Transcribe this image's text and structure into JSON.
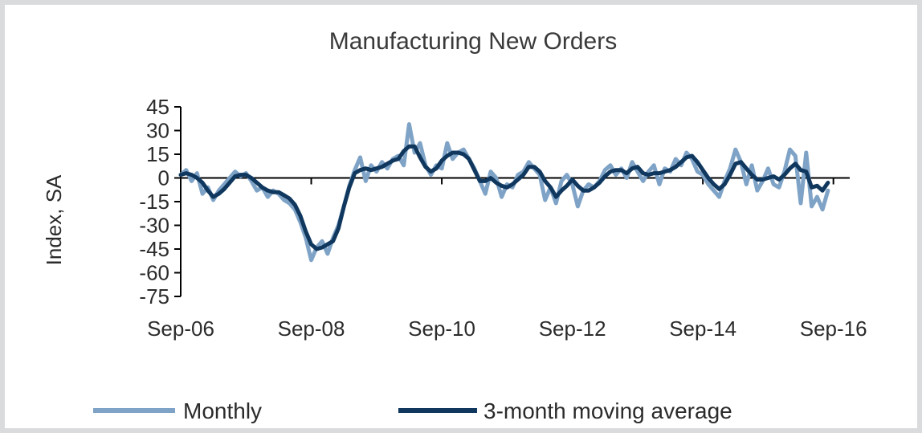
{
  "chart_data": {
    "type": "line",
    "title": "Manufacturing New Orders",
    "ylabel": "Index, SA",
    "xlabel": "",
    "ylim": [
      -75,
      45
    ],
    "yticks": [
      45,
      30,
      15,
      0,
      -15,
      -30,
      -45,
      -60,
      -75
    ],
    "xlim": [
      "2006-09",
      "2016-12"
    ],
    "xtick_labels": [
      "Sep-06",
      "Sep-08",
      "Sep-10",
      "Sep-12",
      "Sep-14",
      "Sep-16"
    ],
    "legend_position": "bottom",
    "series": [
      {
        "name": "Monthly",
        "color": "#7fa3c6",
        "points": [
          [
            "2006-09",
            2
          ],
          [
            "2006-10",
            5
          ],
          [
            "2006-11",
            -2
          ],
          [
            "2006-12",
            3
          ],
          [
            "2007-01",
            -10
          ],
          [
            "2007-02",
            -6
          ],
          [
            "2007-03",
            -14
          ],
          [
            "2007-04",
            -8
          ],
          [
            "2007-05",
            -4
          ],
          [
            "2007-06",
            0
          ],
          [
            "2007-07",
            4
          ],
          [
            "2007-08",
            1
          ],
          [
            "2007-09",
            3
          ],
          [
            "2007-10",
            -2
          ],
          [
            "2007-11",
            -8
          ],
          [
            "2007-12",
            -6
          ],
          [
            "2008-01",
            -12
          ],
          [
            "2008-02",
            -8
          ],
          [
            "2008-03",
            -10
          ],
          [
            "2008-04",
            -14
          ],
          [
            "2008-05",
            -16
          ],
          [
            "2008-06",
            -20
          ],
          [
            "2008-07",
            -28
          ],
          [
            "2008-08",
            -38
          ],
          [
            "2008-09",
            -52
          ],
          [
            "2008-10",
            -44
          ],
          [
            "2008-11",
            -40
          ],
          [
            "2008-12",
            -48
          ],
          [
            "2009-01",
            -38
          ],
          [
            "2009-02",
            -30
          ],
          [
            "2009-03",
            -18
          ],
          [
            "2009-04",
            -5
          ],
          [
            "2009-05",
            5
          ],
          [
            "2009-06",
            13
          ],
          [
            "2009-07",
            -2
          ],
          [
            "2009-08",
            8
          ],
          [
            "2009-09",
            4
          ],
          [
            "2009-10",
            10
          ],
          [
            "2009-11",
            6
          ],
          [
            "2009-12",
            12
          ],
          [
            "2010-01",
            14
          ],
          [
            "2010-02",
            8
          ],
          [
            "2010-03",
            34
          ],
          [
            "2010-04",
            16
          ],
          [
            "2010-05",
            22
          ],
          [
            "2010-06",
            8
          ],
          [
            "2010-07",
            2
          ],
          [
            "2010-08",
            8
          ],
          [
            "2010-09",
            6
          ],
          [
            "2010-10",
            22
          ],
          [
            "2010-11",
            12
          ],
          [
            "2010-12",
            16
          ],
          [
            "2011-01",
            18
          ],
          [
            "2011-02",
            12
          ],
          [
            "2011-03",
            6
          ],
          [
            "2011-04",
            -2
          ],
          [
            "2011-05",
            -10
          ],
          [
            "2011-06",
            4
          ],
          [
            "2011-07",
            0
          ],
          [
            "2011-08",
            -12
          ],
          [
            "2011-09",
            -4
          ],
          [
            "2011-10",
            -6
          ],
          [
            "2011-11",
            2
          ],
          [
            "2011-12",
            4
          ],
          [
            "2012-01",
            10
          ],
          [
            "2012-02",
            6
          ],
          [
            "2012-03",
            2
          ],
          [
            "2012-04",
            -14
          ],
          [
            "2012-05",
            -6
          ],
          [
            "2012-06",
            -16
          ],
          [
            "2012-07",
            -2
          ],
          [
            "2012-08",
            2
          ],
          [
            "2012-09",
            -4
          ],
          [
            "2012-10",
            -18
          ],
          [
            "2012-11",
            -8
          ],
          [
            "2012-12",
            -4
          ],
          [
            "2013-01",
            -6
          ],
          [
            "2013-02",
            -2
          ],
          [
            "2013-03",
            5
          ],
          [
            "2013-04",
            8
          ],
          [
            "2013-05",
            2
          ],
          [
            "2013-06",
            6
          ],
          [
            "2013-07",
            0
          ],
          [
            "2013-08",
            10
          ],
          [
            "2013-09",
            4
          ],
          [
            "2013-10",
            -2
          ],
          [
            "2013-11",
            4
          ],
          [
            "2013-12",
            8
          ],
          [
            "2014-01",
            -4
          ],
          [
            "2014-02",
            6
          ],
          [
            "2014-03",
            4
          ],
          [
            "2014-04",
            12
          ],
          [
            "2014-05",
            8
          ],
          [
            "2014-06",
            16
          ],
          [
            "2014-07",
            12
          ],
          [
            "2014-08",
            4
          ],
          [
            "2014-09",
            2
          ],
          [
            "2014-10",
            -4
          ],
          [
            "2014-11",
            -8
          ],
          [
            "2014-12",
            -12
          ],
          [
            "2015-01",
            -2
          ],
          [
            "2015-02",
            6
          ],
          [
            "2015-03",
            18
          ],
          [
            "2015-04",
            10
          ],
          [
            "2015-05",
            -4
          ],
          [
            "2015-06",
            8
          ],
          [
            "2015-07",
            -8
          ],
          [
            "2015-08",
            -2
          ],
          [
            "2015-09",
            6
          ],
          [
            "2015-10",
            -4
          ],
          [
            "2015-11",
            -6
          ],
          [
            "2015-12",
            4
          ],
          [
            "2016-01",
            18
          ],
          [
            "2016-02",
            14
          ],
          [
            "2016-03",
            -16
          ],
          [
            "2016-04",
            16
          ],
          [
            "2016-05",
            -18
          ],
          [
            "2016-06",
            -12
          ],
          [
            "2016-07",
            -20
          ],
          [
            "2016-08",
            -8
          ]
        ]
      },
      {
        "name": "3-month moving average",
        "color": "#10375e",
        "points": [
          [
            "2006-09",
            2
          ],
          [
            "2006-10",
            3
          ],
          [
            "2006-11",
            2
          ],
          [
            "2006-12",
            0
          ],
          [
            "2007-01",
            -3
          ],
          [
            "2007-02",
            -8
          ],
          [
            "2007-03",
            -12
          ],
          [
            "2007-04",
            -10
          ],
          [
            "2007-05",
            -7
          ],
          [
            "2007-06",
            -3
          ],
          [
            "2007-07",
            1
          ],
          [
            "2007-08",
            2
          ],
          [
            "2007-09",
            2
          ],
          [
            "2007-10",
            0
          ],
          [
            "2007-11",
            -3
          ],
          [
            "2007-12",
            -6
          ],
          [
            "2008-01",
            -8
          ],
          [
            "2008-02",
            -9
          ],
          [
            "2008-03",
            -9
          ],
          [
            "2008-04",
            -11
          ],
          [
            "2008-05",
            -13
          ],
          [
            "2008-06",
            -17
          ],
          [
            "2008-07",
            -24
          ],
          [
            "2008-08",
            -34
          ],
          [
            "2008-09",
            -42
          ],
          [
            "2008-10",
            -45
          ],
          [
            "2008-11",
            -44
          ],
          [
            "2008-12",
            -42
          ],
          [
            "2009-01",
            -40
          ],
          [
            "2009-02",
            -32
          ],
          [
            "2009-03",
            -18
          ],
          [
            "2009-04",
            -6
          ],
          [
            "2009-05",
            3
          ],
          [
            "2009-06",
            5
          ],
          [
            "2009-07",
            6
          ],
          [
            "2009-08",
            5
          ],
          [
            "2009-09",
            6
          ],
          [
            "2009-10",
            7
          ],
          [
            "2009-11",
            9
          ],
          [
            "2009-12",
            11
          ],
          [
            "2010-01",
            12
          ],
          [
            "2010-02",
            17
          ],
          [
            "2010-03",
            20
          ],
          [
            "2010-04",
            20
          ],
          [
            "2010-05",
            13
          ],
          [
            "2010-06",
            7
          ],
          [
            "2010-07",
            4
          ],
          [
            "2010-08",
            6
          ],
          [
            "2010-09",
            11
          ],
          [
            "2010-10",
            14
          ],
          [
            "2010-11",
            16
          ],
          [
            "2010-12",
            16
          ],
          [
            "2011-01",
            15
          ],
          [
            "2011-02",
            12
          ],
          [
            "2011-03",
            5
          ],
          [
            "2011-04",
            -2
          ],
          [
            "2011-05",
            -2
          ],
          [
            "2011-06",
            0
          ],
          [
            "2011-07",
            -3
          ],
          [
            "2011-08",
            -5
          ],
          [
            "2011-09",
            -6
          ],
          [
            "2011-10",
            -4
          ],
          [
            "2011-11",
            -1
          ],
          [
            "2011-12",
            2
          ],
          [
            "2012-01",
            7
          ],
          [
            "2012-02",
            7
          ],
          [
            "2012-03",
            4
          ],
          [
            "2012-04",
            -2
          ],
          [
            "2012-05",
            -6
          ],
          [
            "2012-06",
            -12
          ],
          [
            "2012-07",
            -8
          ],
          [
            "2012-08",
            -5
          ],
          [
            "2012-09",
            -1
          ],
          [
            "2012-10",
            -5
          ],
          [
            "2012-11",
            -8
          ],
          [
            "2012-12",
            -8
          ],
          [
            "2013-01",
            -6
          ],
          [
            "2013-02",
            -3
          ],
          [
            "2013-03",
            1
          ],
          [
            "2013-04",
            4
          ],
          [
            "2013-05",
            5
          ],
          [
            "2013-06",
            5
          ],
          [
            "2013-07",
            3
          ],
          [
            "2013-08",
            6
          ],
          [
            "2013-09",
            7
          ],
          [
            "2013-10",
            3
          ],
          [
            "2013-11",
            2
          ],
          [
            "2013-12",
            3
          ],
          [
            "2014-01",
            3
          ],
          [
            "2014-02",
            4
          ],
          [
            "2014-03",
            5
          ],
          [
            "2014-04",
            7
          ],
          [
            "2014-05",
            10
          ],
          [
            "2014-06",
            13
          ],
          [
            "2014-07",
            14
          ],
          [
            "2014-08",
            10
          ],
          [
            "2014-09",
            5
          ],
          [
            "2014-10",
            0
          ],
          [
            "2014-11",
            -4
          ],
          [
            "2014-12",
            -7
          ],
          [
            "2015-01",
            -4
          ],
          [
            "2015-02",
            2
          ],
          [
            "2015-03",
            9
          ],
          [
            "2015-04",
            10
          ],
          [
            "2015-05",
            6
          ],
          [
            "2015-06",
            2
          ],
          [
            "2015-07",
            -1
          ],
          [
            "2015-08",
            -1
          ],
          [
            "2015-09",
            0
          ],
          [
            "2015-10",
            1
          ],
          [
            "2015-11",
            -1
          ],
          [
            "2015-12",
            2
          ],
          [
            "2016-01",
            6
          ],
          [
            "2016-02",
            9
          ],
          [
            "2016-03",
            5
          ],
          [
            "2016-04",
            4
          ],
          [
            "2016-05",
            -6
          ],
          [
            "2016-06",
            -5
          ],
          [
            "2016-07",
            -8
          ],
          [
            "2016-08",
            -3
          ]
        ]
      }
    ]
  }
}
